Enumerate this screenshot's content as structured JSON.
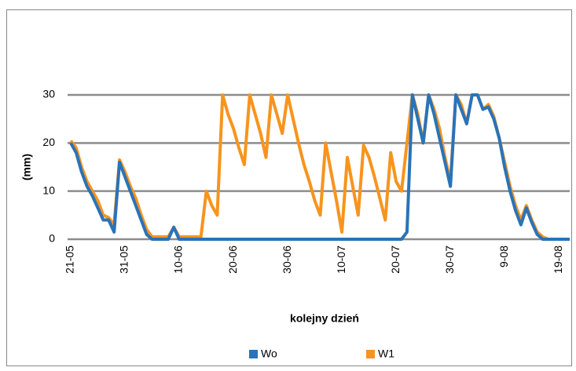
{
  "chart_data": {
    "type": "line",
    "ylabel": "(mm)",
    "xlabel": "kolejny dzień",
    "categories": [
      "21-05",
      null,
      null,
      null,
      null,
      null,
      null,
      null,
      null,
      null,
      "31-05",
      null,
      null,
      null,
      null,
      null,
      null,
      null,
      null,
      null,
      "10-06",
      null,
      null,
      null,
      null,
      null,
      null,
      null,
      null,
      null,
      "20-06",
      null,
      null,
      null,
      null,
      null,
      null,
      null,
      null,
      null,
      "30-06",
      null,
      null,
      null,
      null,
      null,
      null,
      null,
      null,
      null,
      "10-07",
      null,
      null,
      null,
      null,
      null,
      null,
      null,
      null,
      null,
      "20-07",
      null,
      null,
      null,
      null,
      null,
      null,
      null,
      null,
      null,
      "30-07",
      null,
      null,
      null,
      null,
      null,
      null,
      null,
      null,
      null,
      "9-08",
      null,
      null,
      null,
      null,
      null,
      null,
      null,
      null,
      null,
      "19-08",
      null,
      null
    ],
    "series": [
      {
        "name": "W1",
        "color": "#f7941d",
        "values": [
          20.5,
          19,
          15,
          12,
          10,
          8,
          5,
          4.5,
          3,
          16.5,
          14,
          11,
          8.5,
          5,
          2,
          0.5,
          0.5,
          0.5,
          0.5,
          2.5,
          0.5,
          0.5,
          0.5,
          0.5,
          0.5,
          10,
          7,
          5,
          30,
          26,
          23,
          19,
          15.5,
          30,
          26,
          22,
          17,
          30,
          26,
          22,
          30,
          25,
          20,
          15.5,
          12,
          8,
          5,
          20,
          14,
          8,
          1.5,
          17,
          11,
          5,
          19.5,
          17,
          13,
          8.5,
          4,
          18,
          12,
          10,
          20,
          30,
          26,
          20,
          30,
          27,
          23,
          17,
          12,
          30,
          28,
          24,
          30,
          30,
          27,
          28,
          25.5,
          21,
          16,
          11,
          7,
          4,
          7,
          4,
          1.5,
          0.5,
          0,
          0,
          0,
          0,
          0
        ]
      },
      {
        "name": "Wo",
        "color": "#2a73b8",
        "values": [
          20,
          18,
          14,
          11,
          9,
          6.5,
          4,
          4,
          1.5,
          16,
          13,
          10,
          7,
          4,
          1,
          0,
          0,
          0,
          0,
          2.5,
          0,
          0,
          0,
          0,
          0,
          0,
          0,
          0,
          0,
          0,
          0,
          0,
          0,
          0,
          0,
          0,
          0,
          0,
          0,
          0,
          0,
          0,
          0,
          0,
          0,
          0,
          0,
          0,
          0,
          0,
          0,
          0,
          0,
          0,
          0,
          0,
          0,
          0,
          0,
          0,
          0,
          0,
          1.5,
          30,
          25,
          20,
          30,
          26,
          21,
          16,
          11,
          30,
          27,
          24,
          30,
          30,
          27,
          27.5,
          25,
          21,
          15,
          10,
          6,
          3,
          6.5,
          3.5,
          1,
          0,
          0,
          0,
          0,
          0,
          0
        ]
      }
    ],
    "ylim": [
      0,
      30
    ],
    "yticks": [
      0,
      10,
      20,
      30
    ],
    "grid": true
  }
}
